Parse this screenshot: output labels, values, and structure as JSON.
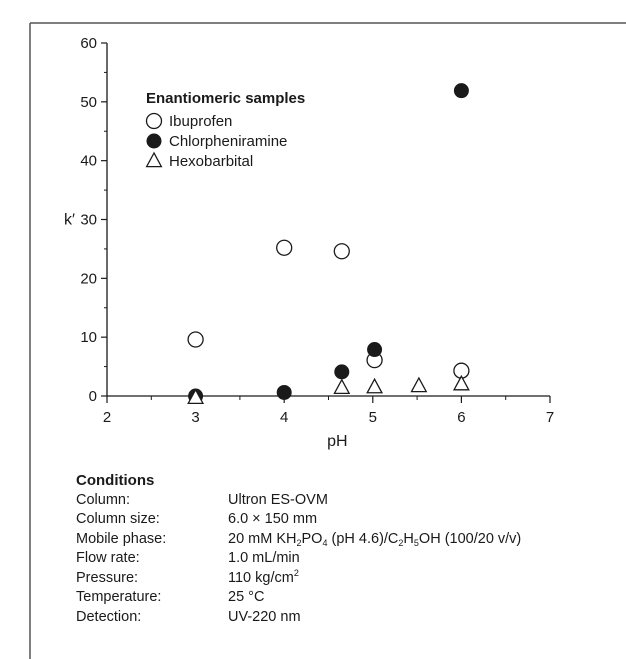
{
  "chart_data": {
    "type": "scatter",
    "title": "",
    "xlabel": "pH",
    "ylabel": "k′",
    "xlim": [
      2,
      7
    ],
    "ylim": [
      0,
      60
    ],
    "xticks": [
      2,
      3,
      4,
      5,
      6,
      7
    ],
    "yticks": [
      0,
      10,
      20,
      30,
      40,
      50,
      60
    ],
    "grid": false,
    "legend": {
      "title": "Enantiomeric samples",
      "placement": "top-left"
    },
    "series": [
      {
        "name": "Ibuprofen",
        "marker": "open-circle",
        "points": [
          [
            3.0,
            9.6
          ],
          [
            4.0,
            25.2
          ],
          [
            4.65,
            24.6
          ],
          [
            5.02,
            6.1
          ],
          [
            6.0,
            4.3
          ]
        ]
      },
      {
        "name": "Chlorpheniramine",
        "marker": "filled-circle",
        "points": [
          [
            3.0,
            0.0
          ],
          [
            4.0,
            0.6
          ],
          [
            4.65,
            4.1
          ],
          [
            5.02,
            7.9
          ],
          [
            6.0,
            51.9
          ]
        ]
      },
      {
        "name": "Hexobarbital",
        "marker": "open-triangle",
        "points": [
          [
            3.0,
            -0.3
          ],
          [
            4.65,
            1.4
          ],
          [
            5.02,
            1.5
          ],
          [
            5.52,
            1.7
          ],
          [
            6.0,
            2.0
          ]
        ]
      }
    ]
  },
  "conditions": {
    "title": "Conditions",
    "rows": [
      {
        "key": "Column:",
        "value": "Ultron ES-OVM"
      },
      {
        "key": "Column size:",
        "value": "6.0 × 150 mm"
      },
      {
        "key": "Mobile phase:",
        "value": "20 mM KH2PO4 (pH 4.6)/C2H5OH (100/20 v/v)"
      },
      {
        "key": "Flow rate:",
        "value": "1.0 mL/min"
      },
      {
        "key": "Pressure:",
        "value": "110 kg/cm2"
      },
      {
        "key": "Temperature:",
        "value": "25 °C"
      },
      {
        "key": "Detection:",
        "value": "UV-220 nm"
      }
    ]
  },
  "mobile_phase_parts": {
    "a": "20 mM KH",
    "b": "2",
    "c": "PO",
    "d": "4",
    "e": " (pH 4.6)/C",
    "f": "2",
    "g": "H",
    "h": "5",
    "i": "OH (100/20 v/v)"
  },
  "pressure_parts": {
    "a": "110 kg/cm",
    "b": "2"
  }
}
